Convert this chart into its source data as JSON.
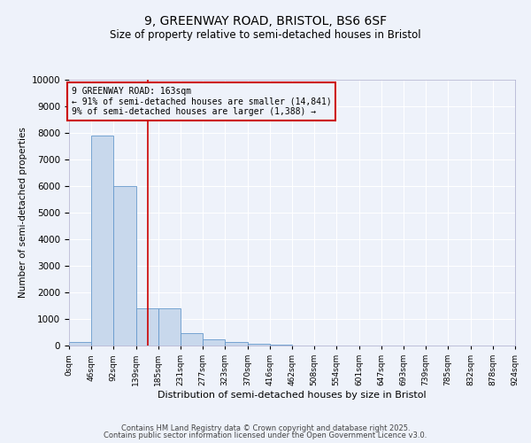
{
  "title1": "9, GREENWAY ROAD, BRISTOL, BS6 6SF",
  "title2": "Size of property relative to semi-detached houses in Bristol",
  "xlabel": "Distribution of semi-detached houses by size in Bristol",
  "ylabel": "Number of semi-detached properties",
  "bin_edges": [
    0,
    46,
    92,
    139,
    185,
    231,
    277,
    323,
    370,
    416,
    462,
    508,
    554,
    601,
    647,
    693,
    739,
    785,
    832,
    878,
    924
  ],
  "bin_labels": [
    "0sqm",
    "46sqm",
    "92sqm",
    "139sqm",
    "185sqm",
    "231sqm",
    "277sqm",
    "323sqm",
    "370sqm",
    "416sqm",
    "462sqm",
    "508sqm",
    "554sqm",
    "601sqm",
    "647sqm",
    "693sqm",
    "739sqm",
    "785sqm",
    "832sqm",
    "878sqm",
    "924sqm"
  ],
  "bar_heights": [
    150,
    7900,
    6000,
    1400,
    1400,
    480,
    230,
    150,
    80,
    20,
    5,
    2,
    1,
    0,
    0,
    0,
    0,
    0,
    0,
    0
  ],
  "bar_color": "#c8d8ec",
  "bar_edgecolor": "#6699cc",
  "property_size": 163,
  "redline_color": "#cc0000",
  "annotation_box_color": "#cc0000",
  "annotation_text1": "9 GREENWAY ROAD: 163sqm",
  "annotation_text2": "← 91% of semi-detached houses are smaller (14,841)",
  "annotation_text3": "9% of semi-detached houses are larger (1,388) →",
  "ylim": [
    0,
    10000
  ],
  "yticks": [
    0,
    1000,
    2000,
    3000,
    4000,
    5000,
    6000,
    7000,
    8000,
    9000,
    10000
  ],
  "background_color": "#eef2fa",
  "grid_color": "#ffffff",
  "footer1": "Contains HM Land Registry data © Crown copyright and database right 2025.",
  "footer2": "Contains public sector information licensed under the Open Government Licence v3.0."
}
